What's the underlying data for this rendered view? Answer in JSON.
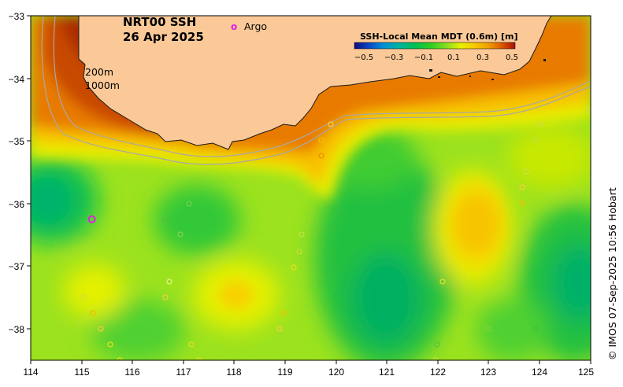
{
  "title": {
    "product": "NRT00 SSH",
    "date": "26 Apr 2025"
  },
  "legend": {
    "argo_symbol": "o",
    "argo_label": "Argo"
  },
  "isobaths": [
    "200m",
    "1000m"
  ],
  "colorbar": {
    "title": "SSH-Local Mean MDT (0.6m) [m]",
    "ticks": [
      "−0.5",
      "−0.3",
      "−0.1",
      "0.1",
      "0.3",
      "0.5"
    ],
    "colors": [
      "#0c0c78",
      "#0a40c0",
      "#0090d8",
      "#00b4a0",
      "#00c050",
      "#30d020",
      "#90e020",
      "#e8f000",
      "#f8c800",
      "#f0a000",
      "#e06800",
      "#c83000",
      "#a01010"
    ]
  },
  "credit": "© IMOS 07-Sep-2025 10:56 Hobart",
  "axes": {
    "x_ticks": [
      "114",
      "115",
      "116",
      "117",
      "118",
      "119",
      "120",
      "121",
      "122",
      "123",
      "124",
      "125"
    ],
    "y_ticks": [
      "−33",
      "−34",
      "−35",
      "−36",
      "−37",
      "−38"
    ]
  },
  "colors": {
    "land": "#fbc998",
    "sea_base": "#9ce21e",
    "argo": "#e020e0",
    "isobath": "#a8a8a8"
  },
  "argo_floats": [
    {
      "lon": 115.2,
      "lat": -36.25
    }
  ]
}
